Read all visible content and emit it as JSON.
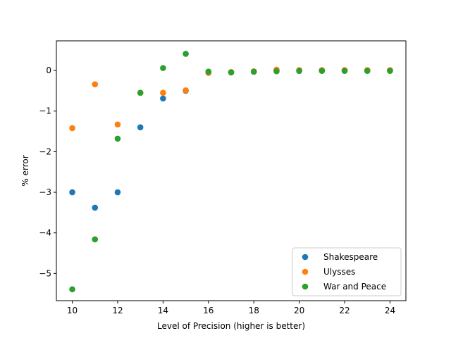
{
  "chart_data": {
    "type": "scatter",
    "title": "",
    "xlabel": "Level of Precision (higher is better)",
    "ylabel": "% error",
    "xlim": [
      9.3,
      24.7
    ],
    "ylim": [
      -5.67,
      0.73
    ],
    "xticks": [
      10,
      12,
      14,
      16,
      18,
      20,
      22,
      24
    ],
    "yticks": [
      -5,
      -4,
      -3,
      -2,
      -1,
      0
    ],
    "grid": false,
    "legend_position": "lower-right",
    "series": [
      {
        "name": "Shakespeare",
        "color": "#1f77b4",
        "x": [
          10,
          11,
          12,
          13,
          14,
          15,
          16,
          17,
          18,
          19,
          20,
          21,
          22,
          23,
          24
        ],
        "y": [
          -3.0,
          -3.38,
          -3.0,
          -1.4,
          -0.69,
          -0.5,
          -0.03,
          -0.04,
          -0.03,
          -0.01,
          -0.01,
          0.0,
          0.0,
          0.0,
          0.0
        ]
      },
      {
        "name": "Ulysses",
        "color": "#ff7f0e",
        "x": [
          10,
          11,
          12,
          13,
          14,
          15,
          16,
          17,
          18,
          19,
          20,
          21,
          22,
          23,
          24
        ],
        "y": [
          -1.42,
          -0.34,
          -1.33,
          -0.55,
          -0.55,
          -0.49,
          -0.06,
          -0.04,
          -0.02,
          0.02,
          0.01,
          0.01,
          0.01,
          0.01,
          0.01
        ]
      },
      {
        "name": "War and Peace",
        "color": "#2ca02c",
        "x": [
          10,
          11,
          12,
          13,
          14,
          15,
          16,
          17,
          18,
          19,
          20,
          21,
          22,
          23,
          24
        ],
        "y": [
          -5.39,
          -4.16,
          -1.68,
          -0.55,
          0.06,
          0.41,
          -0.03,
          -0.05,
          -0.03,
          -0.02,
          -0.01,
          -0.01,
          -0.01,
          -0.01,
          -0.01
        ]
      }
    ]
  }
}
